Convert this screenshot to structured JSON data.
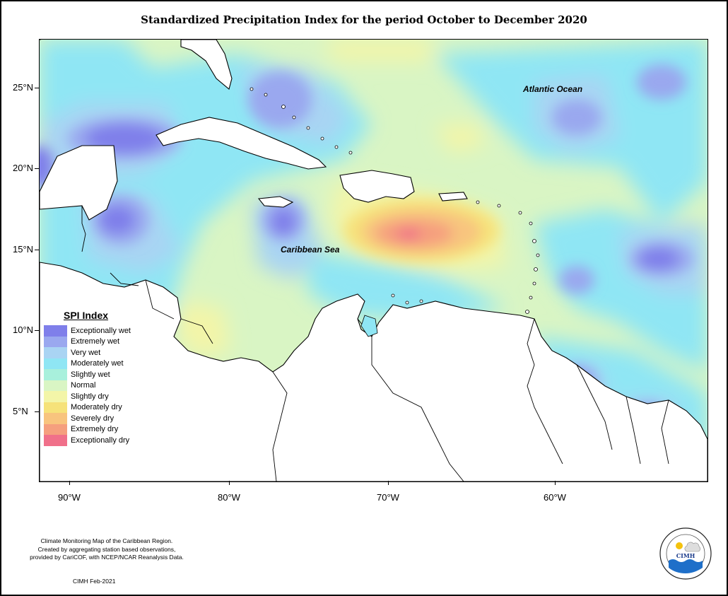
{
  "title": "Standardized Precipitation Index for the period October to December 2020",
  "map": {
    "lat_labels": [
      "25°N",
      "20°N",
      "15°N",
      "10°N",
      "5°N"
    ],
    "lon_labels": [
      "90°W",
      "80°W",
      "70°W",
      "60°W"
    ],
    "ocean_labels": {
      "atlantic": "Atlantic Ocean",
      "caribbean": "Caribbean Sea"
    }
  },
  "legend": {
    "title": "SPI Index",
    "items": [
      {
        "label": "Exceptionally wet",
        "color": "#7f7fea"
      },
      {
        "label": "Extremely wet",
        "color": "#9aa8ef"
      },
      {
        "label": "Very wet",
        "color": "#a9d4f3"
      },
      {
        "label": "Moderately wet",
        "color": "#8fe6f4"
      },
      {
        "label": "Slightly wet",
        "color": "#a8f0dc"
      },
      {
        "label": "Normal",
        "color": "#d9f5c4"
      },
      {
        "label": "Slightly dry",
        "color": "#f3f5a8"
      },
      {
        "label": "Moderately dry",
        "color": "#f6e27a"
      },
      {
        "label": "Severely dry",
        "color": "#f8c47e"
      },
      {
        "label": "Extremely dry",
        "color": "#f59f7e"
      },
      {
        "label": "Exceptionally dry",
        "color": "#f0708a"
      }
    ]
  },
  "footer": {
    "line1": "Climate Monitoring Map of the Caribbean Region.",
    "line2": "Created by aggregating station based observations,",
    "line3": "provided by CariCOF, with NCEP/NCAR Reanalysis Data.",
    "credit": "CIMH Feb-2021",
    "logo_text": "CIMH"
  }
}
